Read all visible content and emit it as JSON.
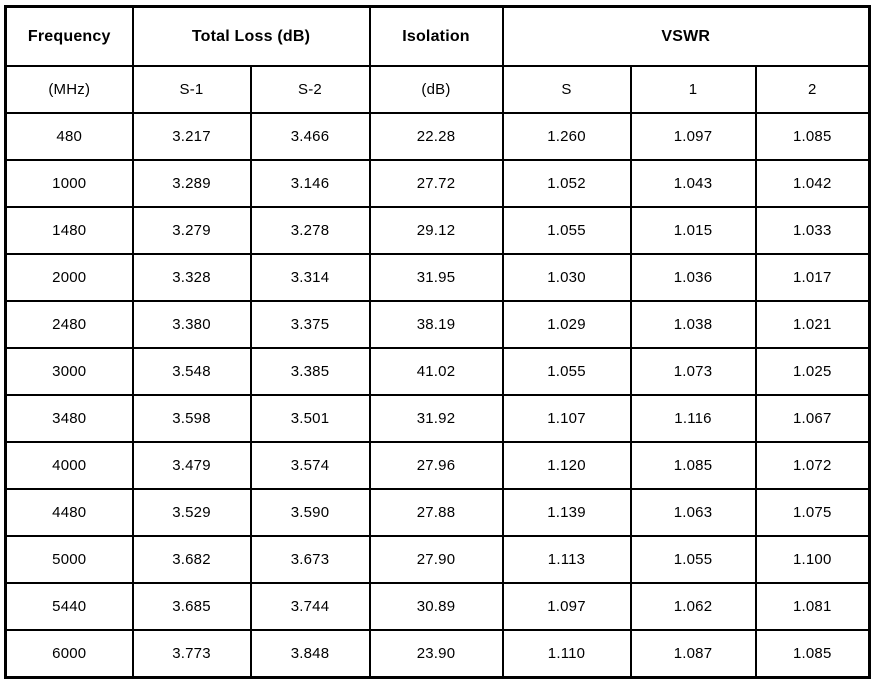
{
  "table": {
    "header_top": [
      "Frequency",
      "Total Loss (dB)",
      "Isolation",
      "VSWR"
    ],
    "header_sub": [
      "(MHz)",
      "S-1",
      "S-2",
      "(dB)",
      "S",
      "1",
      "2"
    ],
    "rows": [
      [
        "480",
        "3.217",
        "3.466",
        "22.28",
        "1.260",
        "1.097",
        "1.085"
      ],
      [
        "1000",
        "3.289",
        "3.146",
        "27.72",
        "1.052",
        "1.043",
        "1.042"
      ],
      [
        "1480",
        "3.279",
        "3.278",
        "29.12",
        "1.055",
        "1.015",
        "1.033"
      ],
      [
        "2000",
        "3.328",
        "3.314",
        "31.95",
        "1.030",
        "1.036",
        "1.017"
      ],
      [
        "2480",
        "3.380",
        "3.375",
        "38.19",
        "1.029",
        "1.038",
        "1.021"
      ],
      [
        "3000",
        "3.548",
        "3.385",
        "41.02",
        "1.055",
        "1.073",
        "1.025"
      ],
      [
        "3480",
        "3.598",
        "3.501",
        "31.92",
        "1.107",
        "1.116",
        "1.067"
      ],
      [
        "4000",
        "3.479",
        "3.574",
        "27.96",
        "1.120",
        "1.085",
        "1.072"
      ],
      [
        "4480",
        "3.529",
        "3.590",
        "27.88",
        "1.139",
        "1.063",
        "1.075"
      ],
      [
        "5000",
        "3.682",
        "3.673",
        "27.90",
        "1.113",
        "1.055",
        "1.100"
      ],
      [
        "5440",
        "3.685",
        "3.744",
        "30.89",
        "1.097",
        "1.062",
        "1.081"
      ],
      [
        "6000",
        "3.773",
        "3.848",
        "23.90",
        "1.110",
        "1.087",
        "1.085"
      ]
    ],
    "colors": {
      "border": "#000000",
      "text": "#000000",
      "background": "#ffffff"
    }
  },
  "chart_data": {
    "type": "table",
    "columns": [
      "Frequency (MHz)",
      "Total Loss S-1 (dB)",
      "Total Loss S-2 (dB)",
      "Isolation (dB)",
      "VSWR S",
      "VSWR 1",
      "VSWR 2"
    ],
    "rows": [
      [
        480,
        3.217,
        3.466,
        22.28,
        1.26,
        1.097,
        1.085
      ],
      [
        1000,
        3.289,
        3.146,
        27.72,
        1.052,
        1.043,
        1.042
      ],
      [
        1480,
        3.279,
        3.278,
        29.12,
        1.055,
        1.015,
        1.033
      ],
      [
        2000,
        3.328,
        3.314,
        31.95,
        1.03,
        1.036,
        1.017
      ],
      [
        2480,
        3.38,
        3.375,
        38.19,
        1.029,
        1.038,
        1.021
      ],
      [
        3000,
        3.548,
        3.385,
        41.02,
        1.055,
        1.073,
        1.025
      ],
      [
        3480,
        3.598,
        3.501,
        31.92,
        1.107,
        1.116,
        1.067
      ],
      [
        4000,
        3.479,
        3.574,
        27.96,
        1.12,
        1.085,
        1.072
      ],
      [
        4480,
        3.529,
        3.59,
        27.88,
        1.139,
        1.063,
        1.075
      ],
      [
        5000,
        3.682,
        3.673,
        27.9,
        1.113,
        1.055,
        1.1
      ],
      [
        5440,
        3.685,
        3.744,
        30.89,
        1.097,
        1.062,
        1.081
      ],
      [
        6000,
        3.773,
        3.848,
        23.9,
        1.11,
        1.087,
        1.085
      ]
    ],
    "title": "",
    "notes": "Grouped headers: Frequency(MHz) | Total Loss (dB): S-1, S-2 | Isolation (dB) | VSWR: S, 1, 2"
  }
}
